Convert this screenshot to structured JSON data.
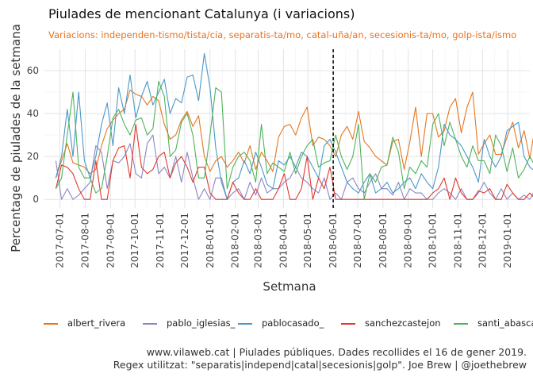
{
  "title": "Piulades de mencionant Catalunya (i variacions)",
  "subtitle": "Variacions: independen-tismo/tista/cia, separatis-ta/mo, catal-uña/an, secesionis-ta/mo, golp-ista/ismo",
  "caption_line1": "www.vilaweb.cat | Piulades públiques. Dades recollides el 16 de gener 2019.",
  "caption_line2": "Regex utilitzat: \"separatis|independ|catal|secesionis|golp\". Joe Brew | @joethebrew",
  "chart_data": {
    "type": "line",
    "title": "Piulades de mencionant Catalunya (i variacions)",
    "xlabel": "Setmana",
    "ylabel": "Percentage de piulades de la setmana",
    "x_start": "2017-06-26",
    "x_step_days": 7,
    "xlim": [
      "2017-06-12",
      "2019-01-28"
    ],
    "ylim": [
      -4,
      70
    ],
    "yticks": [
      0,
      20,
      40,
      60
    ],
    "xticks": [
      "2017-07-01",
      "2017-08-01",
      "2017-09-01",
      "2017-10-01",
      "2017-11-01",
      "2017-12-01",
      "2018-01-01",
      "2018-02-01",
      "2018-03-01",
      "2018-04-01",
      "2018-05-01",
      "2018-06-01",
      "2018-07-01",
      "2018-08-01",
      "2018-09-01",
      "2018-10-01",
      "2018-11-01",
      "2018-12-01",
      "2019-01-01"
    ],
    "vline": "2018-06-01",
    "grid": true,
    "legend_position": "bottom",
    "series": [
      {
        "name": "albert_rivera",
        "color": "#e6761e",
        "values": [
          10,
          18,
          26,
          17,
          16,
          15,
          12,
          14,
          25,
          33,
          37,
          40,
          42,
          51,
          49,
          48,
          44,
          48,
          46,
          35,
          28,
          30,
          37,
          41,
          34,
          39,
          20,
          13,
          18,
          20,
          15,
          18,
          22,
          17,
          25,
          14,
          22,
          18,
          13,
          29,
          34,
          35,
          30,
          38,
          43,
          25,
          29,
          28,
          25,
          20,
          30,
          34,
          28,
          41,
          27,
          24,
          20,
          18,
          16,
          27,
          28,
          14,
          27,
          43,
          20,
          40,
          40,
          29,
          32,
          43,
          47,
          31,
          43,
          50,
          21,
          26,
          30,
          21,
          21,
          29,
          36,
          24,
          32,
          19,
          35,
          36,
          23,
          25,
          29,
          17
        ]
      },
      {
        "name": "pablo_iglesias_",
        "color": "#8e86c4",
        "values": [
          18,
          0,
          5,
          0,
          2,
          5,
          8,
          25,
          22,
          5,
          18,
          17,
          20,
          26,
          12,
          10,
          26,
          30,
          12,
          15,
          10,
          20,
          8,
          22,
          10,
          0,
          5,
          0,
          10,
          10,
          0,
          3,
          5,
          0,
          8,
          2,
          10,
          3,
          5,
          5,
          8,
          10,
          15,
          10,
          8,
          5,
          3,
          10,
          0,
          3,
          0,
          8,
          10,
          5,
          3,
          8,
          12,
          5,
          5,
          2,
          8,
          0,
          5,
          3,
          3,
          0,
          0,
          3,
          5,
          3,
          0,
          5,
          0,
          0,
          3,
          8,
          3,
          0,
          5,
          0,
          3,
          0,
          2,
          0,
          5,
          0,
          3,
          2,
          0,
          0
        ]
      },
      {
        "name": "pablocasado_",
        "color": "#4a98c8",
        "values": [
          10,
          20,
          42,
          20,
          50,
          18,
          10,
          20,
          35,
          45,
          25,
          52,
          40,
          58,
          38,
          48,
          55,
          44,
          50,
          56,
          40,
          47,
          45,
          57,
          58,
          46,
          68,
          52,
          24,
          8,
          0,
          8,
          10,
          18,
          12,
          22,
          15,
          7,
          5,
          18,
          16,
          20,
          15,
          22,
          20,
          15,
          10,
          25,
          28,
          22,
          15,
          8,
          5,
          3,
          8,
          12,
          3,
          5,
          8,
          3,
          5,
          8,
          10,
          5,
          12,
          8,
          5,
          15,
          35,
          30,
          28,
          25,
          20,
          15,
          8,
          28,
          20,
          15,
          20,
          32,
          34,
          36,
          20,
          15,
          13,
          25,
          36,
          14,
          30,
          5
        ]
      },
      {
        "name": "sanchezcastejon",
        "color": "#e0392d",
        "values": [
          5,
          16,
          15,
          12,
          5,
          0,
          0,
          18,
          0,
          0,
          18,
          24,
          25,
          10,
          35,
          15,
          12,
          14,
          20,
          22,
          10,
          17,
          20,
          15,
          8,
          15,
          15,
          3,
          0,
          0,
          0,
          8,
          3,
          0,
          0,
          5,
          0,
          0,
          0,
          5,
          12,
          0,
          0,
          5,
          20,
          0,
          10,
          5,
          15,
          0,
          0,
          0,
          0,
          0,
          0,
          0,
          0,
          0,
          0,
          0,
          0,
          0,
          0,
          0,
          0,
          0,
          3,
          5,
          10,
          0,
          10,
          3,
          0,
          0,
          4,
          3,
          5,
          0,
          0,
          7,
          3,
          0,
          0,
          3,
          0,
          0,
          0,
          2,
          0,
          0
        ]
      },
      {
        "name": "santi_abascal",
        "color": "#4fb35a",
        "values": [
          5,
          10,
          30,
          50,
          15,
          10,
          10,
          3,
          5,
          20,
          38,
          42,
          35,
          30,
          37,
          38,
          30,
          33,
          55,
          48,
          20,
          23,
          36,
          40,
          30,
          10,
          10,
          30,
          52,
          50,
          5,
          15,
          20,
          22,
          18,
          8,
          35,
          12,
          17,
          15,
          13,
          22,
          12,
          20,
          25,
          28,
          15,
          17,
          18,
          30,
          20,
          14,
          20,
          35,
          0,
          12,
          8,
          15,
          16,
          29,
          22,
          5,
          15,
          12,
          18,
          15,
          35,
          40,
          25,
          36,
          28,
          20,
          15,
          25,
          18,
          18,
          12,
          30,
          25,
          13,
          24,
          10,
          14,
          20,
          15,
          35,
          10,
          8,
          20,
          25
        ]
      }
    ]
  },
  "legend": {
    "items": [
      "albert_rivera",
      "pablo_iglesias_",
      "pablocasado_",
      "sanchezcastejon",
      "santi_abascal"
    ]
  }
}
